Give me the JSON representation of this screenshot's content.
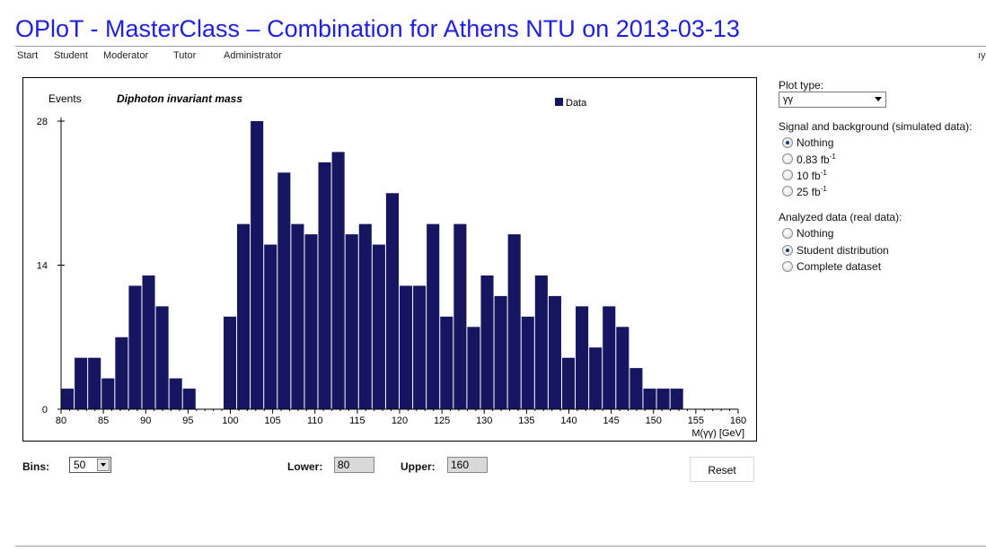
{
  "page": {
    "title": "OPloT - MasterClass – Combination for Athens NTU on 2013-03-13",
    "clipped_user": "ıy"
  },
  "nav": {
    "items": [
      "Start",
      "Student",
      "Moderator",
      "Tutor",
      "Administrator"
    ]
  },
  "controls": {
    "plot_type_label": "Plot type:",
    "plot_type_value": "γγ",
    "signal_heading": "Signal and background (simulated data):",
    "signal_options": [
      {
        "label": "Nothing",
        "sup": "",
        "checked": true
      },
      {
        "label": "0.83 fb",
        "sup": "-1",
        "checked": false
      },
      {
        "label": "10 fb",
        "sup": "-1",
        "checked": false
      },
      {
        "label": "25 fb",
        "sup": "-1",
        "checked": false
      }
    ],
    "analyzed_heading": "Analyzed data (real data):",
    "analyzed_options": [
      {
        "label": "Nothing",
        "checked": false
      },
      {
        "label": "Student distribution",
        "checked": true
      },
      {
        "label": "Complete dataset",
        "checked": false
      }
    ]
  },
  "bottom": {
    "bins_label": "Bins:",
    "bins_value": "50",
    "lower_label": "Lower:",
    "lower_value": "80",
    "upper_label": "Upper:",
    "upper_value": "160",
    "reset_label": "Reset"
  },
  "chart_data": {
    "type": "bar",
    "title": "Diphoton invariant mass",
    "ylabel": "Events",
    "xlabel": "M(γγ) [GeV]",
    "legend": "Data",
    "legend_position": "top-right",
    "bar_color": "#161660",
    "xlim": [
      80,
      160
    ],
    "ylim": [
      0,
      28
    ],
    "bin_width": 1.6,
    "x_ticks": [
      80,
      85,
      90,
      95,
      100,
      105,
      110,
      115,
      120,
      125,
      130,
      135,
      140,
      145,
      150,
      155,
      160
    ],
    "y_ticks": [
      0,
      14,
      28
    ],
    "values": [
      2,
      5,
      5,
      3,
      7,
      12,
      13,
      10,
      3,
      2,
      0,
      0,
      9,
      18,
      28,
      16,
      23,
      18,
      17,
      24,
      25,
      17,
      18,
      16,
      21,
      12,
      12,
      18,
      9,
      18,
      8,
      13,
      11,
      17,
      9,
      13,
      11,
      5,
      10,
      6,
      10,
      8,
      4,
      2,
      2,
      2,
      0,
      0,
      0,
      0
    ],
    "grid": false
  }
}
